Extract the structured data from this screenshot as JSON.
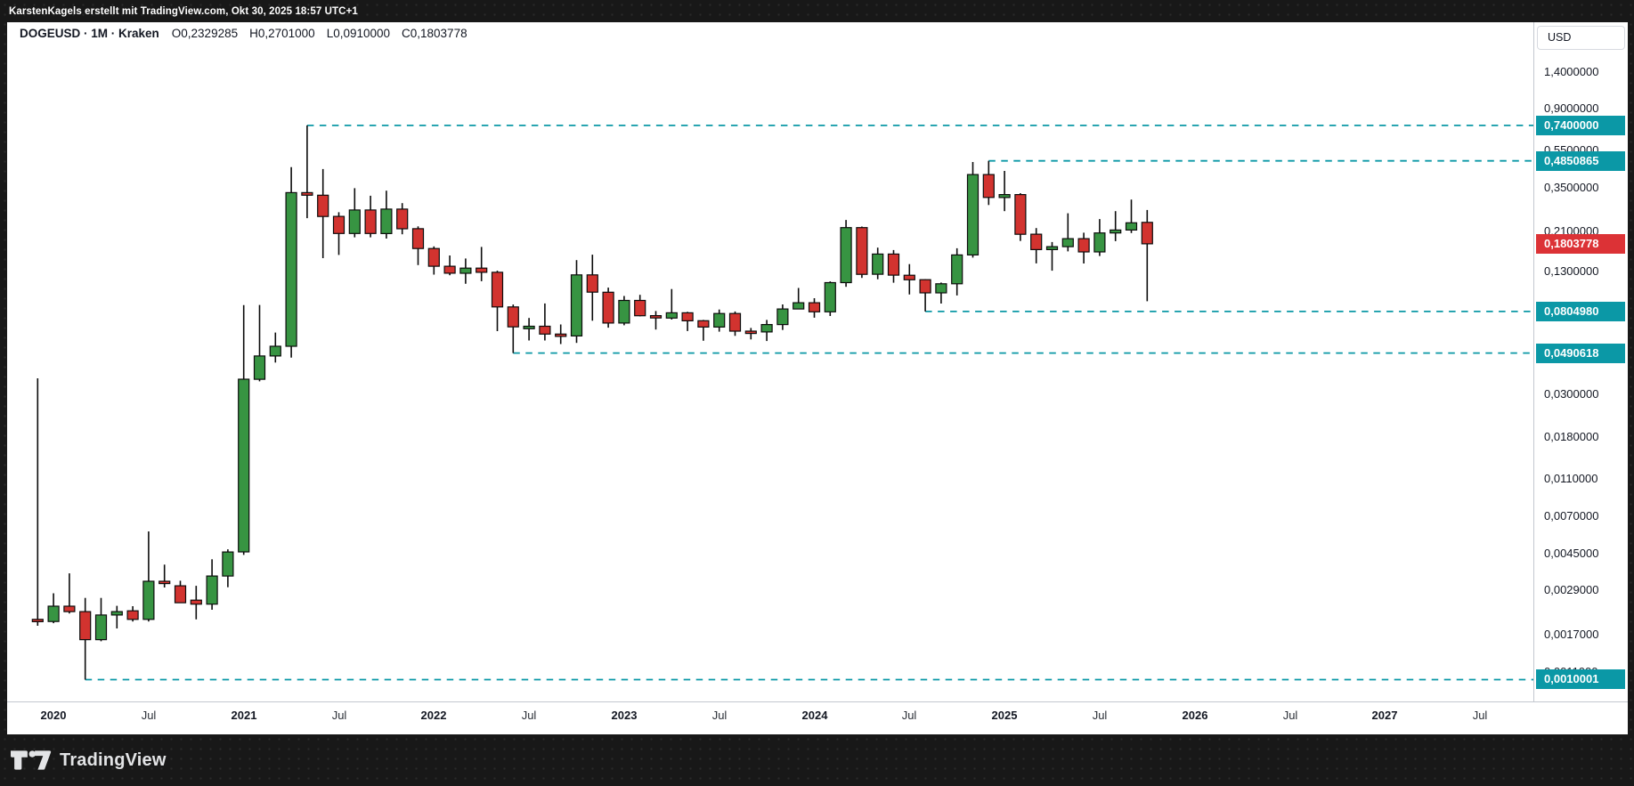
{
  "frame": {
    "attribution": "KarstenKagels erstellt mit TradingView.com, Okt 30, 2025 18:57 UTC+1",
    "logo_text": "TradingView"
  },
  "legend": {
    "symbol_line": "DOGEUSD · 1M · Kraken",
    "ohlc": [
      {
        "text": "O0,2329285"
      },
      {
        "text": "H0,2701000"
      },
      {
        "text": "L0,0910000"
      },
      {
        "text": "C0,1803778"
      }
    ]
  },
  "price_axis": {
    "currency_button": "USD",
    "ticks": [
      {
        "label": "1,4000000",
        "price": 1.4
      },
      {
        "label": "0,9000000",
        "price": 0.9
      },
      {
        "label": "0,5500000",
        "price": 0.55
      },
      {
        "label": "0,3500000",
        "price": 0.35
      },
      {
        "label": "0,2100000",
        "price": 0.21
      },
      {
        "label": "0,1300000",
        "price": 0.13
      },
      {
        "label": "0,0300000",
        "price": 0.03
      },
      {
        "label": "0,0180000",
        "price": 0.018
      },
      {
        "label": "0,0110000",
        "price": 0.011
      },
      {
        "label": "0,0070000",
        "price": 0.007
      },
      {
        "label": "0,0045000",
        "price": 0.0045
      },
      {
        "label": "0,0029000",
        "price": 0.0029
      },
      {
        "label": "0,0017000",
        "price": 0.0017
      },
      {
        "label": "0,0011000",
        "price": 0.0011
      }
    ],
    "badges": [
      {
        "label": "0,7400000",
        "price": 0.74,
        "kind": "level"
      },
      {
        "label": "0,4850865",
        "price": 0.4850865,
        "kind": "level"
      },
      {
        "label": "0,1803778",
        "price": 0.1803778,
        "kind": "last"
      },
      {
        "label": "0,0804980",
        "price": 0.080498,
        "kind": "level"
      },
      {
        "label": "0,0490618",
        "price": 0.0490618,
        "kind": "level"
      },
      {
        "label": "0,0010001",
        "price": 0.0010001,
        "kind": "level"
      }
    ]
  },
  "time_axis": {
    "ticks": [
      {
        "label": "2020",
        "t": "2020-01",
        "bold": true
      },
      {
        "label": "Jul",
        "t": "2020-07",
        "bold": false
      },
      {
        "label": "2021",
        "t": "2021-01",
        "bold": true
      },
      {
        "label": "Jul",
        "t": "2021-07",
        "bold": false
      },
      {
        "label": "2022",
        "t": "2022-01",
        "bold": true
      },
      {
        "label": "Jul",
        "t": "2022-07",
        "bold": false
      },
      {
        "label": "2023",
        "t": "2023-01",
        "bold": true
      },
      {
        "label": "Jul",
        "t": "2023-07",
        "bold": false
      },
      {
        "label": "2024",
        "t": "2024-01",
        "bold": true
      },
      {
        "label": "Jul",
        "t": "2024-07",
        "bold": false
      },
      {
        "label": "2025",
        "t": "2025-01",
        "bold": true
      },
      {
        "label": "Jul",
        "t": "2025-07",
        "bold": false
      },
      {
        "label": "2026",
        "t": "2026-01",
        "bold": true
      },
      {
        "label": "Jul",
        "t": "2026-07",
        "bold": false
      },
      {
        "label": "2027",
        "t": "2027-01",
        "bold": true
      },
      {
        "label": "Jul",
        "t": "2027-07",
        "bold": false
      }
    ]
  },
  "colors": {
    "up": "#379442",
    "down": "#d2332f",
    "candle_border": "#0c0c0c",
    "wick": "#0c0c0c",
    "level_line": "#0b98a6",
    "badge_level": "#0b98a6",
    "badge_last": "#dc3236",
    "axis_text": "#131722"
  },
  "chart_data": {
    "type": "candlestick",
    "symbol": "DOGEUSD",
    "interval": "1M",
    "exchange": "Kraken",
    "price_scale": "logarithmic",
    "currency": "USD",
    "title": "DOGEUSD · 1M · Kraken",
    "last_ohlc": {
      "o": 0.2329285,
      "h": 0.2701,
      "l": 0.091,
      "c": 0.1803778
    },
    "levels": [
      {
        "price": 0.74,
        "label": "0,7400000",
        "start": "2021-05"
      },
      {
        "price": 0.4850865,
        "label": "0,4850865",
        "start": "2024-12"
      },
      {
        "price": 0.080498,
        "label": "0,0804980",
        "start": "2024-08"
      },
      {
        "price": 0.0490618,
        "label": "0,0490618",
        "start": "2022-06"
      },
      {
        "price": 0.0010001,
        "label": "0,0010001",
        "start": "2020-03"
      }
    ],
    "candles": [
      {
        "t": "2019-12",
        "o": 0.00205,
        "h": 0.0363,
        "l": 0.0019,
        "c": 0.002
      },
      {
        "t": "2020-01",
        "o": 0.002,
        "h": 0.0028,
        "l": 0.00196,
        "c": 0.0024
      },
      {
        "t": "2020-02",
        "o": 0.0024,
        "h": 0.00355,
        "l": 0.0022,
        "c": 0.00225
      },
      {
        "t": "2020-03",
        "o": 0.00225,
        "h": 0.00265,
        "l": 0.0010001,
        "c": 0.00161
      },
      {
        "t": "2020-04",
        "o": 0.00161,
        "h": 0.00265,
        "l": 0.00158,
        "c": 0.00216
      },
      {
        "t": "2020-05",
        "o": 0.00216,
        "h": 0.00241,
        "l": 0.00184,
        "c": 0.00225
      },
      {
        "t": "2020-06",
        "o": 0.00227,
        "h": 0.0024,
        "l": 0.002,
        "c": 0.00205
      },
      {
        "t": "2020-07",
        "o": 0.00205,
        "h": 0.00585,
        "l": 0.002,
        "c": 0.00323
      },
      {
        "t": "2020-08",
        "o": 0.00323,
        "h": 0.00394,
        "l": 0.003,
        "c": 0.00318
      },
      {
        "t": "2020-09",
        "o": 0.00306,
        "h": 0.00325,
        "l": 0.0025,
        "c": 0.0025
      },
      {
        "t": "2020-10",
        "o": 0.00258,
        "h": 0.00306,
        "l": 0.00205,
        "c": 0.00246
      },
      {
        "t": "2020-11",
        "o": 0.00246,
        "h": 0.0042,
        "l": 0.0023,
        "c": 0.00344
      },
      {
        "t": "2020-12",
        "o": 0.00344,
        "h": 0.00473,
        "l": 0.00301,
        "c": 0.00458
      },
      {
        "t": "2021-01",
        "o": 0.00458,
        "h": 0.0869,
        "l": 0.00442,
        "c": 0.0359
      },
      {
        "t": "2021-02",
        "o": 0.0359,
        "h": 0.087,
        "l": 0.035,
        "c": 0.0474
      },
      {
        "t": "2021-03",
        "o": 0.0474,
        "h": 0.0626,
        "l": 0.0438,
        "c": 0.0532
      },
      {
        "t": "2021-04",
        "o": 0.0532,
        "h": 0.45,
        "l": 0.0465,
        "c": 0.332
      },
      {
        "t": "2021-05",
        "o": 0.332,
        "h": 0.74,
        "l": 0.245,
        "c": 0.322
      },
      {
        "t": "2021-06",
        "o": 0.322,
        "h": 0.44,
        "l": 0.152,
        "c": 0.25
      },
      {
        "t": "2021-07",
        "o": 0.25,
        "h": 0.263,
        "l": 0.158,
        "c": 0.204
      },
      {
        "t": "2021-08",
        "o": 0.204,
        "h": 0.35,
        "l": 0.195,
        "c": 0.27
      },
      {
        "t": "2021-09",
        "o": 0.27,
        "h": 0.32,
        "l": 0.195,
        "c": 0.204
      },
      {
        "t": "2021-10",
        "o": 0.204,
        "h": 0.34,
        "l": 0.192,
        "c": 0.273
      },
      {
        "t": "2021-11",
        "o": 0.273,
        "h": 0.293,
        "l": 0.202,
        "c": 0.216
      },
      {
        "t": "2021-12",
        "o": 0.216,
        "h": 0.222,
        "l": 0.14,
        "c": 0.1705
      },
      {
        "t": "2022-01",
        "o": 0.1705,
        "h": 0.175,
        "l": 0.125,
        "c": 0.138
      },
      {
        "t": "2022-02",
        "o": 0.138,
        "h": 0.157,
        "l": 0.124,
        "c": 0.127
      },
      {
        "t": "2022-03",
        "o": 0.127,
        "h": 0.1515,
        "l": 0.112,
        "c": 0.135
      },
      {
        "t": "2022-04",
        "o": 0.135,
        "h": 0.1738,
        "l": 0.1155,
        "c": 0.1285
      },
      {
        "t": "2022-05",
        "o": 0.1285,
        "h": 0.131,
        "l": 0.0637,
        "c": 0.085
      },
      {
        "t": "2022-06",
        "o": 0.085,
        "h": 0.0875,
        "l": 0.0490618,
        "c": 0.067
      },
      {
        "t": "2022-07",
        "o": 0.0655,
        "h": 0.0745,
        "l": 0.057,
        "c": 0.0675
      },
      {
        "t": "2022-08",
        "o": 0.0675,
        "h": 0.0886,
        "l": 0.057,
        "c": 0.0615
      },
      {
        "t": "2022-09",
        "o": 0.0615,
        "h": 0.069,
        "l": 0.0546,
        "c": 0.0601
      },
      {
        "t": "2022-10",
        "o": 0.0601,
        "h": 0.1485,
        "l": 0.0554,
        "c": 0.1245
      },
      {
        "t": "2022-11",
        "o": 0.1245,
        "h": 0.1585,
        "l": 0.0721,
        "c": 0.1013
      },
      {
        "t": "2022-12",
        "o": 0.1013,
        "h": 0.107,
        "l": 0.0664,
        "c": 0.0702
      },
      {
        "t": "2023-01",
        "o": 0.0702,
        "h": 0.0969,
        "l": 0.0683,
        "c": 0.0919
      },
      {
        "t": "2023-02",
        "o": 0.0919,
        "h": 0.0982,
        "l": 0.076,
        "c": 0.0766
      },
      {
        "t": "2023-03",
        "o": 0.0766,
        "h": 0.081,
        "l": 0.0649,
        "c": 0.0745
      },
      {
        "t": "2023-04",
        "o": 0.0745,
        "h": 0.1052,
        "l": 0.0731,
        "c": 0.0793
      },
      {
        "t": "2023-05",
        "o": 0.0793,
        "h": 0.0802,
        "l": 0.0638,
        "c": 0.0721
      },
      {
        "t": "2023-06",
        "o": 0.0721,
        "h": 0.0728,
        "l": 0.0568,
        "c": 0.0669
      },
      {
        "t": "2023-07",
        "o": 0.0669,
        "h": 0.0824,
        "l": 0.0633,
        "c": 0.0786
      },
      {
        "t": "2023-08",
        "o": 0.0786,
        "h": 0.0805,
        "l": 0.0602,
        "c": 0.0637
      },
      {
        "t": "2023-09",
        "o": 0.0637,
        "h": 0.0662,
        "l": 0.0577,
        "c": 0.0631
      },
      {
        "t": "2023-10",
        "o": 0.0631,
        "h": 0.0728,
        "l": 0.0566,
        "c": 0.0689
      },
      {
        "t": "2023-11",
        "o": 0.0689,
        "h": 0.0876,
        "l": 0.0646,
        "c": 0.083
      },
      {
        "t": "2023-12",
        "o": 0.083,
        "h": 0.1066,
        "l": 0.0827,
        "c": 0.0894
      },
      {
        "t": "2024-01",
        "o": 0.0894,
        "h": 0.0943,
        "l": 0.0748,
        "c": 0.0802
      },
      {
        "t": "2024-02",
        "o": 0.0802,
        "h": 0.1153,
        "l": 0.0763,
        "c": 0.1136
      },
      {
        "t": "2024-03",
        "o": 0.1136,
        "h": 0.2397,
        "l": 0.1081,
        "c": 0.2188
      },
      {
        "t": "2024-04",
        "o": 0.2188,
        "h": 0.2216,
        "l": 0.1201,
        "c": 0.1254
      },
      {
        "t": "2024-05",
        "o": 0.1254,
        "h": 0.1723,
        "l": 0.1183,
        "c": 0.1596
      },
      {
        "t": "2024-06",
        "o": 0.1596,
        "h": 0.1674,
        "l": 0.1135,
        "c": 0.1241
      },
      {
        "t": "2024-07",
        "o": 0.1241,
        "h": 0.1416,
        "l": 0.0986,
        "c": 0.1176
      },
      {
        "t": "2024-08",
        "o": 0.1176,
        "h": 0.1182,
        "l": 0.080498,
        "c": 0.1005
      },
      {
        "t": "2024-09",
        "o": 0.1005,
        "h": 0.1137,
        "l": 0.0885,
        "c": 0.112
      },
      {
        "t": "2024-10",
        "o": 0.112,
        "h": 0.171,
        "l": 0.0975,
        "c": 0.158
      },
      {
        "t": "2024-11",
        "o": 0.158,
        "h": 0.4785,
        "l": 0.153,
        "c": 0.412
      },
      {
        "t": "2024-12",
        "o": 0.412,
        "h": 0.4850865,
        "l": 0.2864,
        "c": 0.3135
      },
      {
        "t": "2025-01",
        "o": 0.3135,
        "h": 0.43,
        "l": 0.2662,
        "c": 0.3245
      },
      {
        "t": "2025-02",
        "o": 0.3245,
        "h": 0.33,
        "l": 0.1866,
        "c": 0.2022
      },
      {
        "t": "2025-03",
        "o": 0.2022,
        "h": 0.2176,
        "l": 0.1428,
        "c": 0.1683
      },
      {
        "t": "2025-04",
        "o": 0.1683,
        "h": 0.1842,
        "l": 0.131,
        "c": 0.1743
      },
      {
        "t": "2025-05",
        "o": 0.1743,
        "h": 0.2597,
        "l": 0.1648,
        "c": 0.1918
      },
      {
        "t": "2025-06",
        "o": 0.1918,
        "h": 0.206,
        "l": 0.1427,
        "c": 0.1637
      },
      {
        "t": "2025-07",
        "o": 0.1637,
        "h": 0.2422,
        "l": 0.156,
        "c": 0.2053
      },
      {
        "t": "2025-08",
        "o": 0.2053,
        "h": 0.2663,
        "l": 0.1862,
        "c": 0.2127
      },
      {
        "t": "2025-09",
        "o": 0.2127,
        "h": 0.3058,
        "l": 0.2052,
        "c": 0.2318
      },
      {
        "t": "2025-10",
        "o": 0.2329285,
        "h": 0.2701,
        "l": 0.091,
        "c": 0.1803778
      }
    ]
  }
}
